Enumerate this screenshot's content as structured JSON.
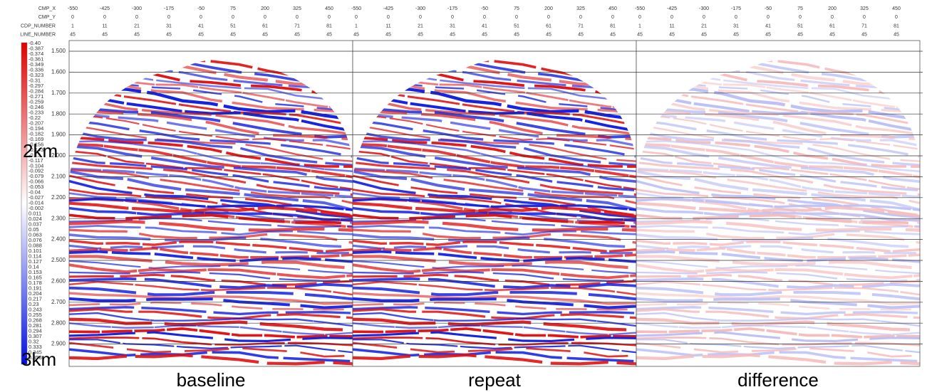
{
  "header": {
    "rows": [
      {
        "name": "CMP_X",
        "values": [
          "-550",
          "-425",
          "-300",
          "-175",
          "-50",
          "75",
          "200",
          "325",
          "450"
        ]
      },
      {
        "name": "CMP_Y",
        "values": [
          "0",
          "0",
          "0",
          "0",
          "0",
          "0",
          "0",
          "0",
          "0"
        ]
      },
      {
        "name": "CDP_NUMBER",
        "values": [
          "1",
          "11",
          "21",
          "31",
          "41",
          "51",
          "61",
          "71",
          "81"
        ]
      },
      {
        "name": "LINE_NUMBER",
        "values": [
          "45",
          "45",
          "45",
          "45",
          "45",
          "45",
          "45",
          "45",
          "45"
        ]
      }
    ]
  },
  "time_axis": [
    "1.500",
    "1.600",
    "1.700",
    "1.800",
    "1.900",
    "2.000",
    "2.100",
    "2.200",
    "2.300",
    "2.400",
    "2.500",
    "2.600",
    "2.700",
    "2.800",
    "2.900"
  ],
  "colorbar": [
    "-0.40",
    "-0.387",
    "-0.374",
    "-0.361",
    "-0.349",
    "-0.336",
    "-0.323",
    "-0.31",
    "-0.297",
    "-0.284",
    "-0.271",
    "-0.259",
    "-0.246",
    "-0.233",
    "-0.22",
    "-0.207",
    "-0.194",
    "-0.182",
    "-0.169",
    "-0.156",
    "-0.143",
    "-0.13",
    "-0.117",
    "-0.104",
    "-0.092",
    "-0.079",
    "-0.066",
    "-0.053",
    "-0.04",
    "-0.027",
    "-0.014",
    "-0.002",
    "0.011",
    "0.024",
    "0.037",
    "0.05",
    "0.063",
    "0.076",
    "0.088",
    "0.101",
    "0.114",
    "0.127",
    "0.14",
    "0.153",
    "0.165",
    "0.178",
    "0.191",
    "0.204",
    "0.217",
    "0.23",
    "0.243",
    "0.255",
    "0.268",
    "0.281",
    "0.294",
    "0.307",
    "0.32",
    "0.333",
    "0.345",
    "0.358"
  ],
  "depth_labels": [
    "2km",
    "3km"
  ],
  "panels": [
    "baseline",
    "repeat",
    "difference"
  ]
}
